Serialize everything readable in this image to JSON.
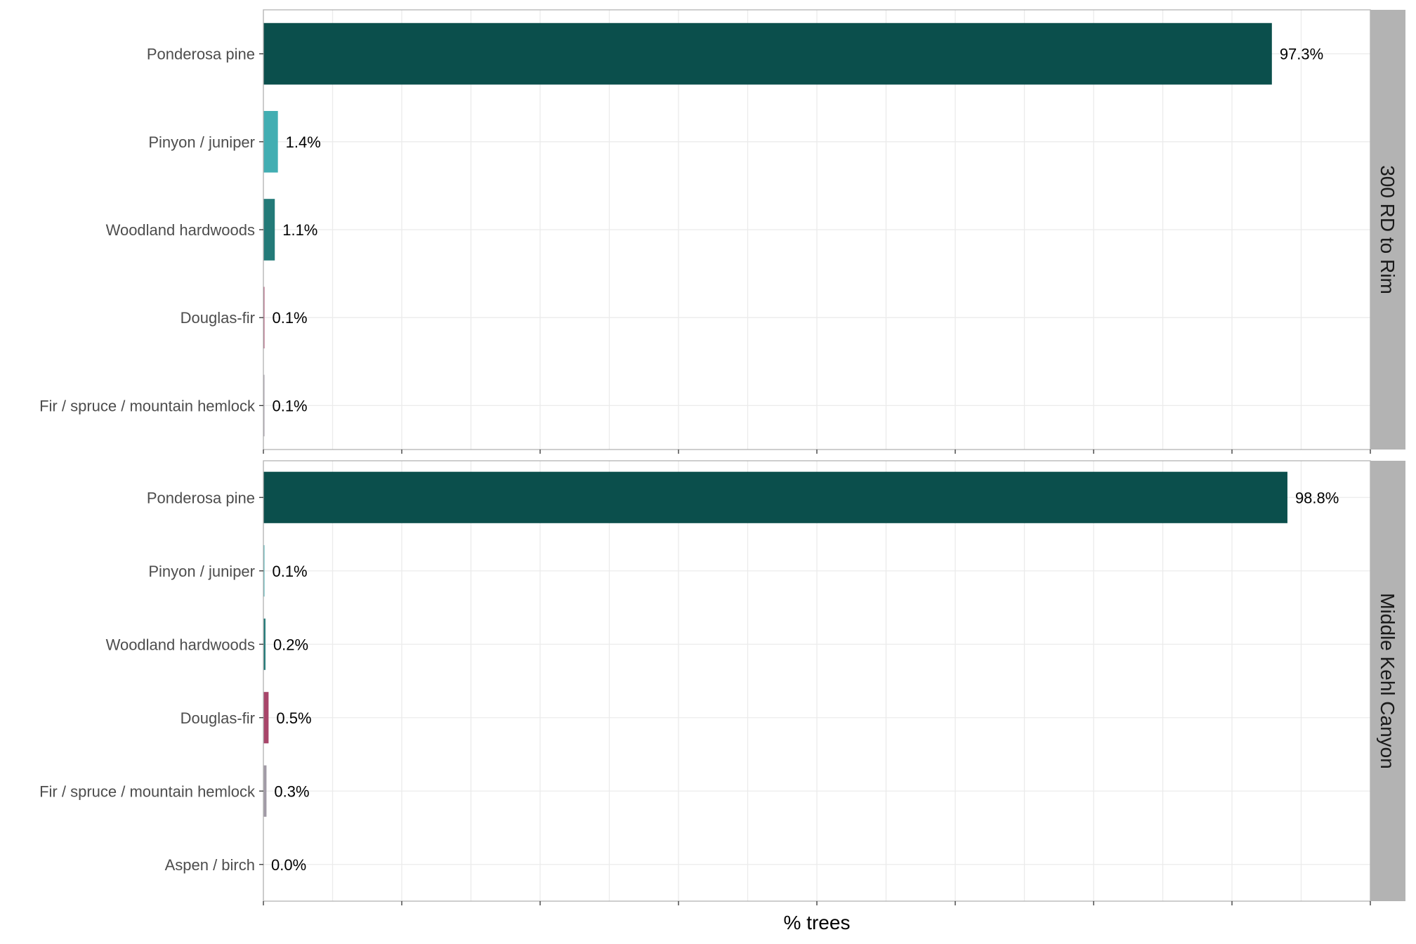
{
  "chart_data": {
    "type": "bar",
    "orientation": "horizontal",
    "xlabel": "% trees",
    "xlim": [
      0,
      106.8
    ],
    "grid": true,
    "facets": [
      {
        "name": "300 RD to Rim",
        "categories": [
          "Ponderosa pine",
          "Pinyon / juniper",
          "Woodland hardwoods",
          "Douglas-fir",
          "Fir / spruce / mountain hemlock"
        ],
        "values": [
          97.3,
          1.4,
          1.1,
          0.1,
          0.1
        ],
        "labels": [
          "97.3%",
          "1.4%",
          "1.1%",
          "0.1%",
          "0.1%"
        ],
        "colors": [
          "#0b4f4c",
          "#42aeb2",
          "#237a78",
          "#a8456a",
          "#a19aa6"
        ]
      },
      {
        "name": "Middle Kehl Canyon",
        "categories": [
          "Ponderosa pine",
          "Pinyon / juniper",
          "Woodland hardwoods",
          "Douglas-fir",
          "Fir / spruce / mountain hemlock",
          "Aspen / birch"
        ],
        "values": [
          98.8,
          0.1,
          0.2,
          0.5,
          0.3,
          0.0
        ],
        "labels": [
          "98.8%",
          "0.1%",
          "0.2%",
          "0.5%",
          "0.3%",
          "0.0%"
        ],
        "colors": [
          "#0b4f4c",
          "#42aeb2",
          "#237a78",
          "#a8456a",
          "#a19aa6",
          "#c9a23f"
        ]
      }
    ]
  }
}
